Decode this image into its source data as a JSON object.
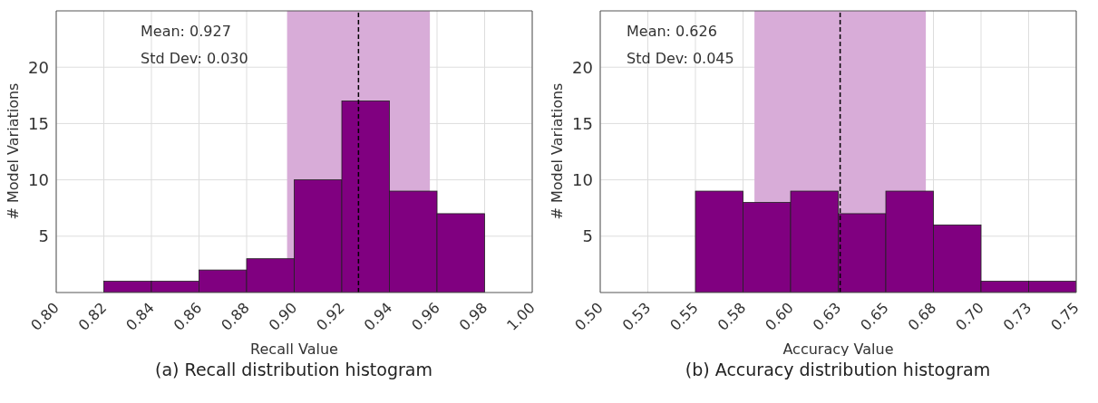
{
  "chart_data": [
    {
      "type": "histogram",
      "title": "(a) Recall distribution histogram",
      "xlabel": "Recall Value",
      "ylabel": "# Model Variations",
      "bins": [
        0.82,
        0.84,
        0.86,
        0.88,
        0.9,
        0.92,
        0.94,
        0.96,
        0.98
      ],
      "values": [
        1,
        1,
        2,
        3,
        10,
        17,
        9,
        7
      ],
      "color": "#800080",
      "xlim": [
        0.8,
        1.0
      ],
      "xticks": [
        {
          "value": 0.8,
          "label": "0.80"
        },
        0.82,
        0.84,
        0.86,
        0.88,
        {
          "value": 0.9,
          "label": "0.90"
        },
        0.92,
        0.94,
        0.96,
        0.98,
        {
          "value": 1.0,
          "label": "1.00"
        }
      ],
      "ylim": [
        0,
        25
      ],
      "yticks": [
        5,
        10,
        15,
        20
      ],
      "grid": true,
      "annotations": [
        "Mean: 0.927",
        "Std Dev: 0.030"
      ],
      "ref_lines": [
        {
          "axis": "x",
          "value": 0.927,
          "color": "#000000",
          "line_style": "dashed"
        }
      ],
      "bands": [
        {
          "axis": "x",
          "from": 0.897,
          "to": 0.957,
          "color": "#d8acd8"
        }
      ]
    },
    {
      "type": "histogram",
      "title": "(b) Accuracy distribution histogram",
      "xlabel": "Accuracy Value",
      "ylabel": "# Model Variations",
      "bins": [
        0.55,
        0.575,
        0.6,
        0.625,
        0.65,
        0.675,
        0.7,
        0.725,
        0.75
      ],
      "values": [
        9,
        8,
        9,
        7,
        9,
        6,
        1,
        1
      ],
      "color": "#800080",
      "xlim": [
        0.5,
        0.75
      ],
      "xticks": [
        {
          "value": 0.5,
          "label": "0.50"
        },
        {
          "value": 0.525,
          "label": "0.53"
        },
        0.55,
        {
          "value": 0.575,
          "label": "0.58"
        },
        {
          "value": 0.6,
          "label": "0.60"
        },
        {
          "value": 0.625,
          "label": "0.63"
        },
        0.65,
        {
          "value": 0.675,
          "label": "0.68"
        },
        {
          "value": 0.7,
          "label": "0.70"
        },
        {
          "value": 0.725,
          "label": "0.73"
        },
        0.75
      ],
      "ylim": [
        0,
        25
      ],
      "yticks": [
        5,
        10,
        15,
        20
      ],
      "grid": true,
      "annotations": [
        "Mean: 0.626",
        "Std Dev: 0.045"
      ],
      "ref_lines": [
        {
          "axis": "x",
          "value": 0.626,
          "color": "#000000",
          "line_style": "dashed"
        }
      ],
      "bands": [
        {
          "axis": "x",
          "from": 0.581,
          "to": 0.671,
          "color": "#d8acd8"
        }
      ]
    }
  ]
}
